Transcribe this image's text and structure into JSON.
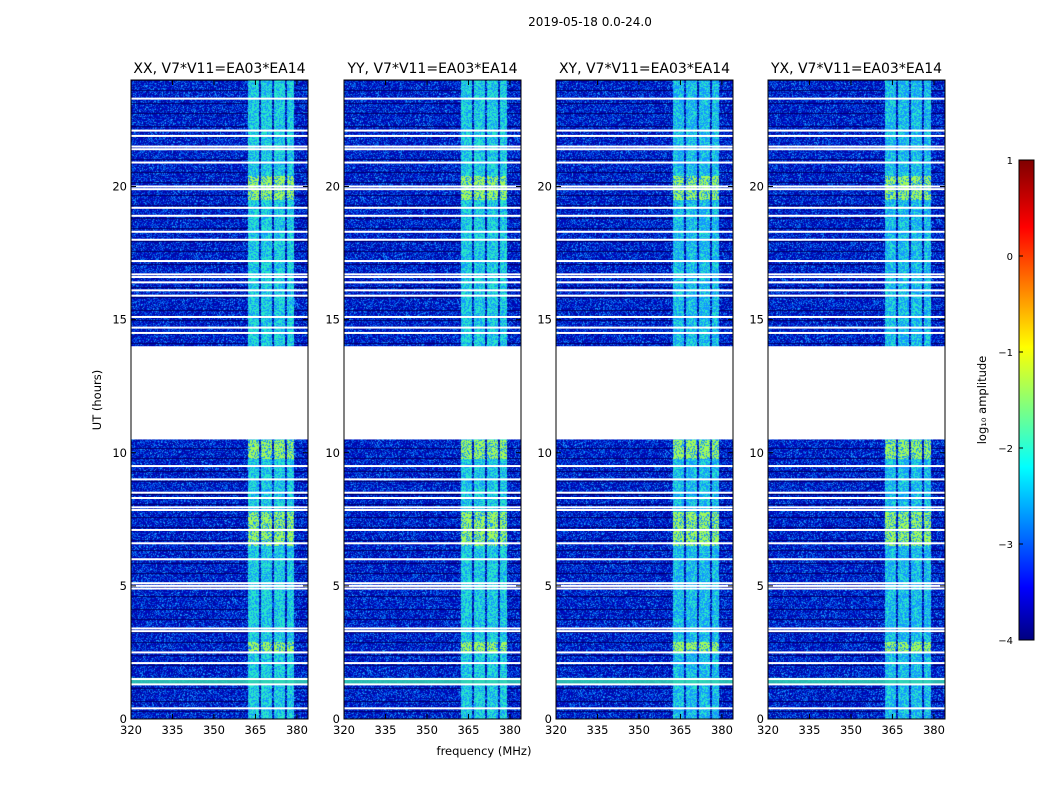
{
  "chart_data": {
    "type": "heatmap",
    "suptitle": "2019-05-18 0.0-24.0",
    "xlabel": "frequency (MHz)",
    "ylabel": "UT (hours)",
    "xlim": [
      320,
      384
    ],
    "ylim": [
      0,
      24
    ],
    "x_ticks": [
      320,
      335,
      350,
      365,
      380
    ],
    "y_ticks": [
      0,
      5,
      10,
      15,
      20
    ],
    "panels": [
      {
        "title": "XX, V7*V11=EA03*EA14",
        "rfi_start_mhz": 361.5
      },
      {
        "title": "YY, V7*V11=EA03*EA14",
        "rfi_start_mhz": 361.5
      },
      {
        "title": "XY, V7*V11=EA03*EA14",
        "rfi_start_mhz": 361.5
      },
      {
        "title": "YX, V7*V11=EA03*EA14",
        "rfi_start_mhz": 361.5
      }
    ],
    "rfi_band_mhz": [
      361.5,
      378.5
    ],
    "data_gap_hours": [
      10.5,
      14.0
    ],
    "flagged_rows_hours": [
      0.4,
      1.3,
      1.5,
      2.1,
      2.5,
      3.3,
      3.4,
      4.9,
      5.0,
      5.1,
      6.0,
      6.6,
      7.1,
      7.85,
      7.95,
      8.3,
      8.5,
      9.0,
      9.5,
      14.5,
      14.7,
      15.1,
      15.9,
      16.1,
      16.4,
      16.6,
      16.7,
      17.2,
      18.0,
      18.3,
      18.9,
      19.2,
      19.9,
      20.0,
      20.9,
      21.4,
      21.5,
      21.9,
      22.1,
      23.3
    ],
    "colorbar": {
      "label": "log₁₀ amplitude",
      "range": [
        -4,
        1
      ],
      "ticks": [
        -4,
        -3,
        -2,
        -1,
        0,
        1
      ],
      "tick_labels": [
        "−4",
        "−3",
        "−2",
        "−1",
        "0",
        "1"
      ]
    }
  }
}
